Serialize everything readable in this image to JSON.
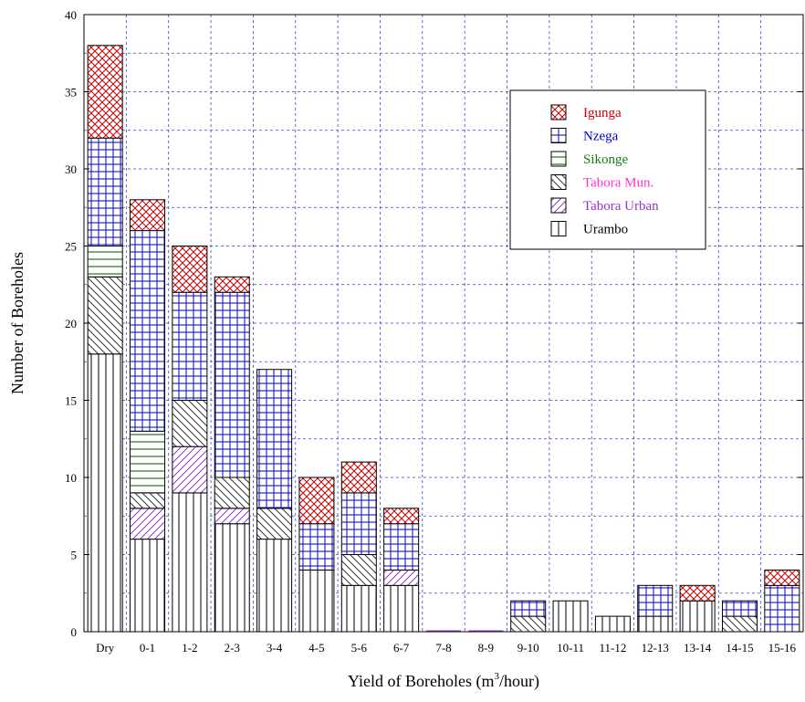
{
  "chart_data": {
    "type": "bar",
    "stacked": true,
    "ylabel": "Number of Boreholes",
    "xlabel_prefix": "Yield  of Boreholes (m",
    "xlabel_sup": "3",
    "xlabel_suffix": "/hour)",
    "ylim": [
      0,
      40
    ],
    "yticks": [
      0,
      5,
      10,
      15,
      20,
      25,
      30,
      35,
      40
    ],
    "grid": true,
    "legend_position": "top-right",
    "categories": [
      "Dry",
      "0-1",
      "1-2",
      "2-3",
      "3-4",
      "4-5",
      "5-6",
      "6-7",
      "7-8",
      "8-9",
      "9-10",
      "10-11",
      "11-12",
      "12-13",
      "13-14",
      "14-15",
      "15-16"
    ],
    "series": [
      {
        "name": "Urambo",
        "color": "#000000",
        "pattern": "vertical",
        "values": [
          18,
          6,
          9,
          7,
          6,
          4,
          3,
          3,
          0,
          0,
          0,
          2,
          1,
          1,
          2,
          0,
          0
        ]
      },
      {
        "name": "Tabora Urban",
        "color": "#9933cc",
        "pattern": "diagonal",
        "values": [
          0,
          2,
          3,
          1,
          0,
          0,
          0,
          1,
          0,
          0,
          0,
          0,
          0,
          0,
          0,
          0,
          0
        ]
      },
      {
        "name": "Tabora Mun.",
        "color": "#333333",
        "pattern": "backdiagonal",
        "values": [
          5,
          1,
          3,
          2,
          2,
          0,
          2,
          0,
          0,
          0,
          1,
          0,
          0,
          0,
          0,
          1,
          0
        ]
      },
      {
        "name": "Sikonge",
        "color": "#1a7a1a",
        "pattern": "horizontal",
        "values": [
          2,
          4,
          0,
          0,
          0,
          0,
          0,
          0,
          0,
          0,
          0,
          0,
          0,
          0,
          0,
          0,
          0
        ]
      },
      {
        "name": "Nzega",
        "color": "#0000cc",
        "pattern": "grid",
        "values": [
          7,
          13,
          7,
          12,
          9,
          3,
          4,
          3,
          0,
          0,
          1,
          0,
          0,
          2,
          0,
          1,
          3
        ]
      },
      {
        "name": "Igunga",
        "color": "#cc0000",
        "pattern": "crosshatch",
        "values": [
          6,
          2,
          3,
          1,
          0,
          3,
          2,
          1,
          0,
          0,
          0,
          0,
          0,
          0,
          1,
          0,
          1
        ]
      }
    ],
    "legend_order": [
      "Igunga",
      "Nzega",
      "Sikonge",
      "Tabora Mun.",
      "Tabora Urban",
      "Urambo"
    ],
    "legend_label_colors": {
      "Igunga": "#cc0000",
      "Nzega": "#0000cc",
      "Sikonge": "#1a7a1a",
      "Tabora Mun.": "#ff33cc",
      "Tabora Urban": "#9933cc",
      "Urambo": "#000000"
    }
  }
}
